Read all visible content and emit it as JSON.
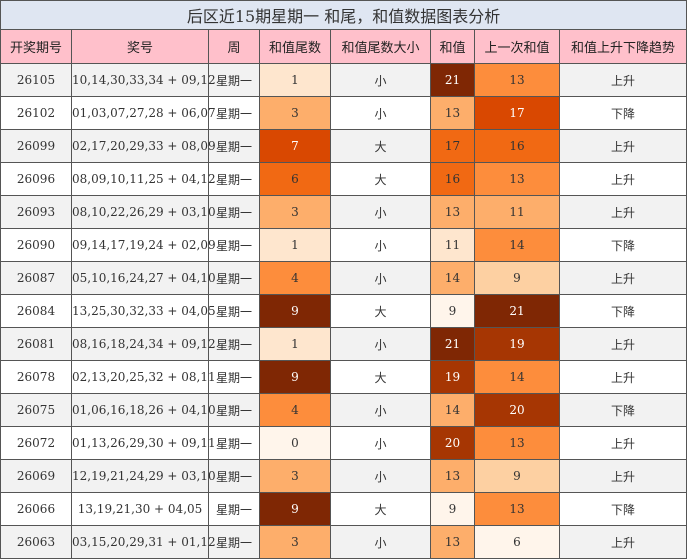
{
  "chart_data": {
    "type": "table",
    "title": "后区近15期星期一 和尾，和值数据图表分析",
    "columns": [
      "开奖期号",
      "奖号",
      "周",
      "和值尾数",
      "和值尾数大小",
      "和值",
      "上一次和值",
      "和值上升下降趋势"
    ],
    "rows": [
      {
        "issue": "26105",
        "numbers": "10,14,30,33,34 + 09,12",
        "weekday": "星期一",
        "tail": "1",
        "size": "小",
        "sum": "21",
        "prev_sum": "13",
        "trend": "上升"
      },
      {
        "issue": "26102",
        "numbers": "01,03,07,27,28 + 06,07",
        "weekday": "星期一",
        "tail": "3",
        "size": "小",
        "sum": "13",
        "prev_sum": "17",
        "trend": "下降"
      },
      {
        "issue": "26099",
        "numbers": "02,17,20,29,33 + 08,09",
        "weekday": "星期一",
        "tail": "7",
        "size": "大",
        "sum": "17",
        "prev_sum": "16",
        "trend": "上升"
      },
      {
        "issue": "26096",
        "numbers": "08,09,10,11,25 + 04,12",
        "weekday": "星期一",
        "tail": "6",
        "size": "大",
        "sum": "16",
        "prev_sum": "13",
        "trend": "上升"
      },
      {
        "issue": "26093",
        "numbers": "08,10,22,26,29 + 03,10",
        "weekday": "星期一",
        "tail": "3",
        "size": "小",
        "sum": "13",
        "prev_sum": "11",
        "trend": "上升"
      },
      {
        "issue": "26090",
        "numbers": "09,14,17,19,24 + 02,09",
        "weekday": "星期一",
        "tail": "1",
        "size": "小",
        "sum": "11",
        "prev_sum": "14",
        "trend": "下降"
      },
      {
        "issue": "26087",
        "numbers": "05,10,16,24,27 + 04,10",
        "weekday": "星期一",
        "tail": "4",
        "size": "小",
        "sum": "14",
        "prev_sum": "9",
        "trend": "上升"
      },
      {
        "issue": "26084",
        "numbers": "13,25,30,32,33 + 04,05",
        "weekday": "星期一",
        "tail": "9",
        "size": "大",
        "sum": "9",
        "prev_sum": "21",
        "trend": "下降"
      },
      {
        "issue": "26081",
        "numbers": "08,16,18,24,34 + 09,12",
        "weekday": "星期一",
        "tail": "1",
        "size": "小",
        "sum": "21",
        "prev_sum": "19",
        "trend": "上升"
      },
      {
        "issue": "26078",
        "numbers": "02,13,20,25,32 + 08,11",
        "weekday": "星期一",
        "tail": "9",
        "size": "大",
        "sum": "19",
        "prev_sum": "14",
        "trend": "上升"
      },
      {
        "issue": "26075",
        "numbers": "01,06,16,18,26 + 04,10",
        "weekday": "星期一",
        "tail": "4",
        "size": "小",
        "sum": "14",
        "prev_sum": "20",
        "trend": "下降"
      },
      {
        "issue": "26072",
        "numbers": "01,13,26,29,30 + 09,11",
        "weekday": "星期一",
        "tail": "0",
        "size": "小",
        "sum": "20",
        "prev_sum": "13",
        "trend": "上升"
      },
      {
        "issue": "26069",
        "numbers": "12,19,21,24,29 + 03,10",
        "weekday": "星期一",
        "tail": "3",
        "size": "小",
        "sum": "13",
        "prev_sum": "9",
        "trend": "上升"
      },
      {
        "issue": "26066",
        "numbers": "13,19,21,30 + 04,05",
        "weekday": "星期一",
        "tail": "9",
        "size": "大",
        "sum": "9",
        "prev_sum": "13",
        "trend": "下降"
      },
      {
        "issue": "26063",
        "numbers": "03,15,20,29,31 + 01,12",
        "weekday": "星期一",
        "tail": "3",
        "size": "小",
        "sum": "13",
        "prev_sum": "6",
        "trend": "上升"
      }
    ]
  },
  "colors": {
    "title_bg": "#dfe6f2",
    "header_bg": "#ffc0cb",
    "stripe_gray": "#f2f2f2",
    "stripe_white": "#ffffff",
    "heat_scale": [
      "#fff5eb",
      "#fee6ce",
      "#fdd0a2",
      "#fdae6b",
      "#fd8d3c",
      "#f16913",
      "#d94801",
      "#a63603",
      "#7f2704"
    ]
  }
}
